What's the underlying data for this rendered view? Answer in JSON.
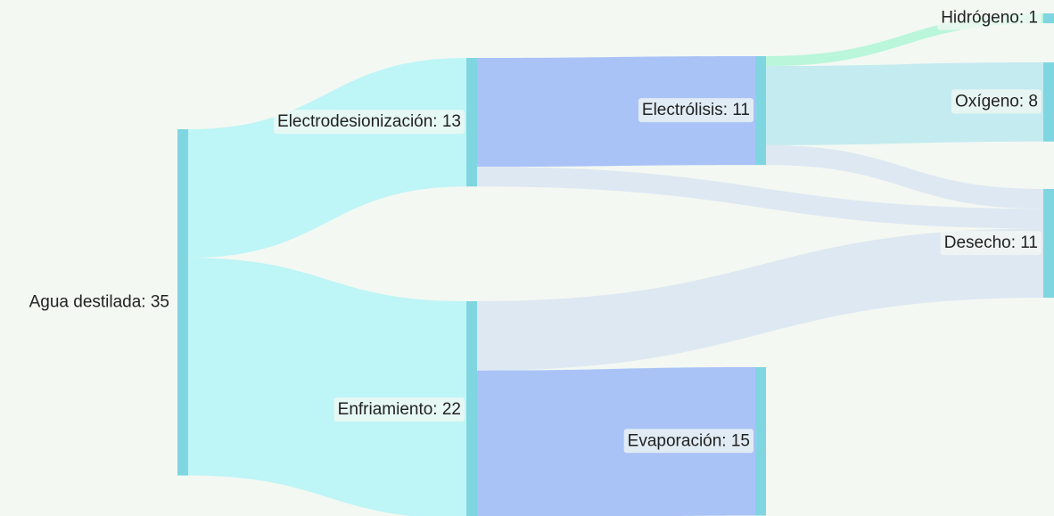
{
  "chart_data": {
    "type": "sankey",
    "node_color": "#7fd6e0",
    "nodes": [
      {
        "label": "Agua destilada: 35",
        "value": 35
      },
      {
        "label": "Electrodesionización: 13",
        "value": 13
      },
      {
        "label": "Enfriamiento: 22",
        "value": 22
      },
      {
        "label": "Electrólisis: 11",
        "value": 11
      },
      {
        "label": "Evaporación: 15",
        "value": 15
      },
      {
        "label": "Hidrógeno: 1",
        "value": 1
      },
      {
        "label": "Oxígeno: 8",
        "value": 8
      },
      {
        "label": "Desecho: 11",
        "value": 11
      }
    ],
    "links": [
      {
        "source": 0,
        "target": 1,
        "value": 13,
        "color": "#b8f4f6"
      },
      {
        "source": 0,
        "target": 2,
        "value": 22,
        "color": "#b8f4f6"
      },
      {
        "source": 3,
        "target": 5,
        "value": 1,
        "color": "#b4f5d6"
      },
      {
        "source": 3,
        "target": 6,
        "value": 8,
        "color": "#bfe9ee"
      },
      {
        "source": 3,
        "target": 7,
        "value": 2,
        "color": "#dce6f2"
      },
      {
        "source": 1,
        "target": 3,
        "value": 11,
        "color": "#a1bcf7"
      },
      {
        "source": 1,
        "target": 7,
        "value": 2,
        "color": "#dce6f2"
      },
      {
        "source": 2,
        "target": 7,
        "value": 7,
        "color": "#dce6f2"
      },
      {
        "source": 2,
        "target": 4,
        "value": 15,
        "color": "#a1bcf7"
      }
    ]
  }
}
